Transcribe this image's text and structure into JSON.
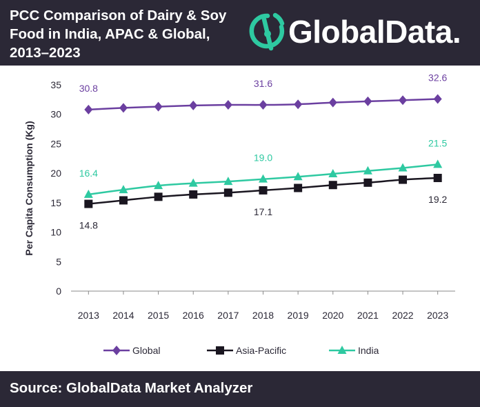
{
  "header": {
    "title_lines": [
      "PCC Comparison of Dairy & Soy",
      "Food in India, APAC & Global,",
      "2013–2023"
    ],
    "logo_text": "GlobalData.",
    "logo_icon": "globaldata-logo-icon"
  },
  "chart_data": {
    "type": "line",
    "ylabel": "Per Capita Consumption (Kg)",
    "xlabel": "",
    "ylim": [
      0,
      35
    ],
    "yticks": [
      0,
      5,
      10,
      15,
      20,
      25,
      30,
      35
    ],
    "x": [
      "2013",
      "2014",
      "2015",
      "2016",
      "2017",
      "2018",
      "2019",
      "2020",
      "2021",
      "2022",
      "2023"
    ],
    "grid": false,
    "legend": "bottom",
    "series": [
      {
        "name": "Global",
        "marker": "diamond",
        "color": "#6b3fa0",
        "values": [
          30.8,
          31.1,
          31.3,
          31.5,
          31.6,
          31.6,
          31.7,
          32.0,
          32.2,
          32.4,
          32.6
        ],
        "labels": [
          {
            "index": 0,
            "text": "30.8",
            "placement": "above"
          },
          {
            "index": 5,
            "text": "31.6",
            "placement": "above"
          },
          {
            "index": 10,
            "text": "32.6",
            "placement": "above"
          }
        ]
      },
      {
        "name": "Asia-Pacific",
        "marker": "square",
        "color": "#1a1620",
        "values": [
          14.8,
          15.4,
          16.0,
          16.4,
          16.7,
          17.1,
          17.5,
          18.0,
          18.4,
          18.9,
          19.2
        ],
        "labels": [
          {
            "index": 0,
            "text": "14.8",
            "placement": "below"
          },
          {
            "index": 5,
            "text": "17.1",
            "placement": "below"
          },
          {
            "index": 10,
            "text": "19.2",
            "placement": "below"
          }
        ]
      },
      {
        "name": "India",
        "marker": "triangle",
        "color": "#2ec9a1",
        "values": [
          16.4,
          17.2,
          17.9,
          18.3,
          18.6,
          19.0,
          19.4,
          19.9,
          20.4,
          20.9,
          21.5
        ],
        "labels": [
          {
            "index": 0,
            "text": "16.4",
            "placement": "above"
          },
          {
            "index": 5,
            "text": "19.0",
            "placement": "above"
          },
          {
            "index": 10,
            "text": "21.5",
            "placement": "above"
          }
        ]
      }
    ]
  },
  "footer": {
    "source": "Source: GlobalData Market Analyzer"
  },
  "colors": {
    "header_bg": "#2b2836",
    "axis": "#8a8a8a",
    "tick_text": "#2b2836",
    "logo_green": "#2ec9a1"
  }
}
